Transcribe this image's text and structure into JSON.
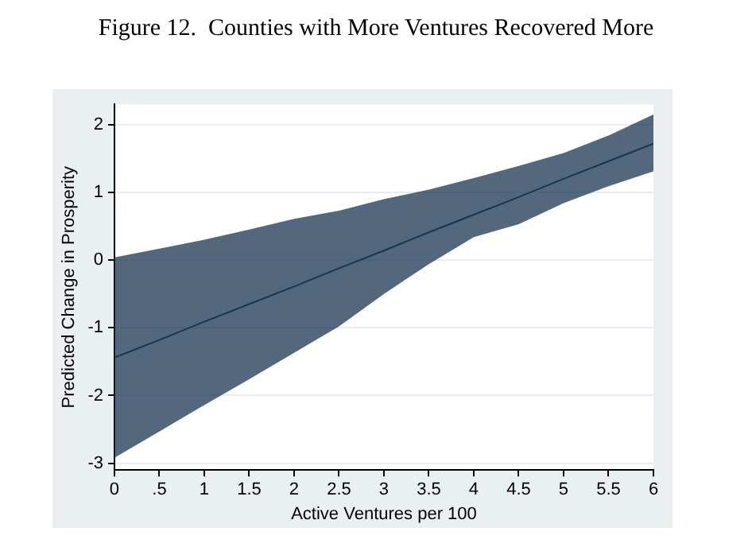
{
  "chart_data": {
    "type": "line",
    "title": "Figure 12.  Counties with More Ventures Recovered More",
    "xlabel": "Active Ventures per 100",
    "ylabel": "Predicted Change in Prosperity",
    "x": [
      0,
      0.5,
      1,
      1.5,
      2,
      2.5,
      3,
      3.5,
      4,
      4.5,
      5,
      5.5,
      6
    ],
    "series": [
      {
        "color": "#1a3552",
        "values": [
          -1.44,
          -1.18,
          -0.91,
          -0.65,
          -0.39,
          -0.12,
          0.14,
          0.41,
          0.67,
          0.93,
          1.2,
          1.46,
          1.72
        ],
        "lower": [
          -2.92,
          -2.53,
          -2.14,
          -1.76,
          -1.37,
          -0.98,
          -0.5,
          -0.06,
          0.34,
          0.53,
          0.84,
          1.09,
          1.31
        ],
        "upper": [
          0.04,
          0.17,
          0.3,
          0.45,
          0.61,
          0.73,
          0.9,
          1.04,
          1.21,
          1.39,
          1.58,
          1.84,
          2.15
        ]
      }
    ],
    "xlim": [
      0,
      6
    ],
    "ylim": [
      -3.1,
      2.3
    ],
    "xticks": [
      0,
      {
        "value": 0.5,
        "label": ".5"
      },
      1,
      1.5,
      2,
      2.5,
      3,
      3.5,
      4,
      4.5,
      5,
      5.5,
      6
    ],
    "yticks": [
      -3,
      -2,
      -1,
      0,
      1,
      2
    ],
    "grid": "y",
    "legend": false
  }
}
